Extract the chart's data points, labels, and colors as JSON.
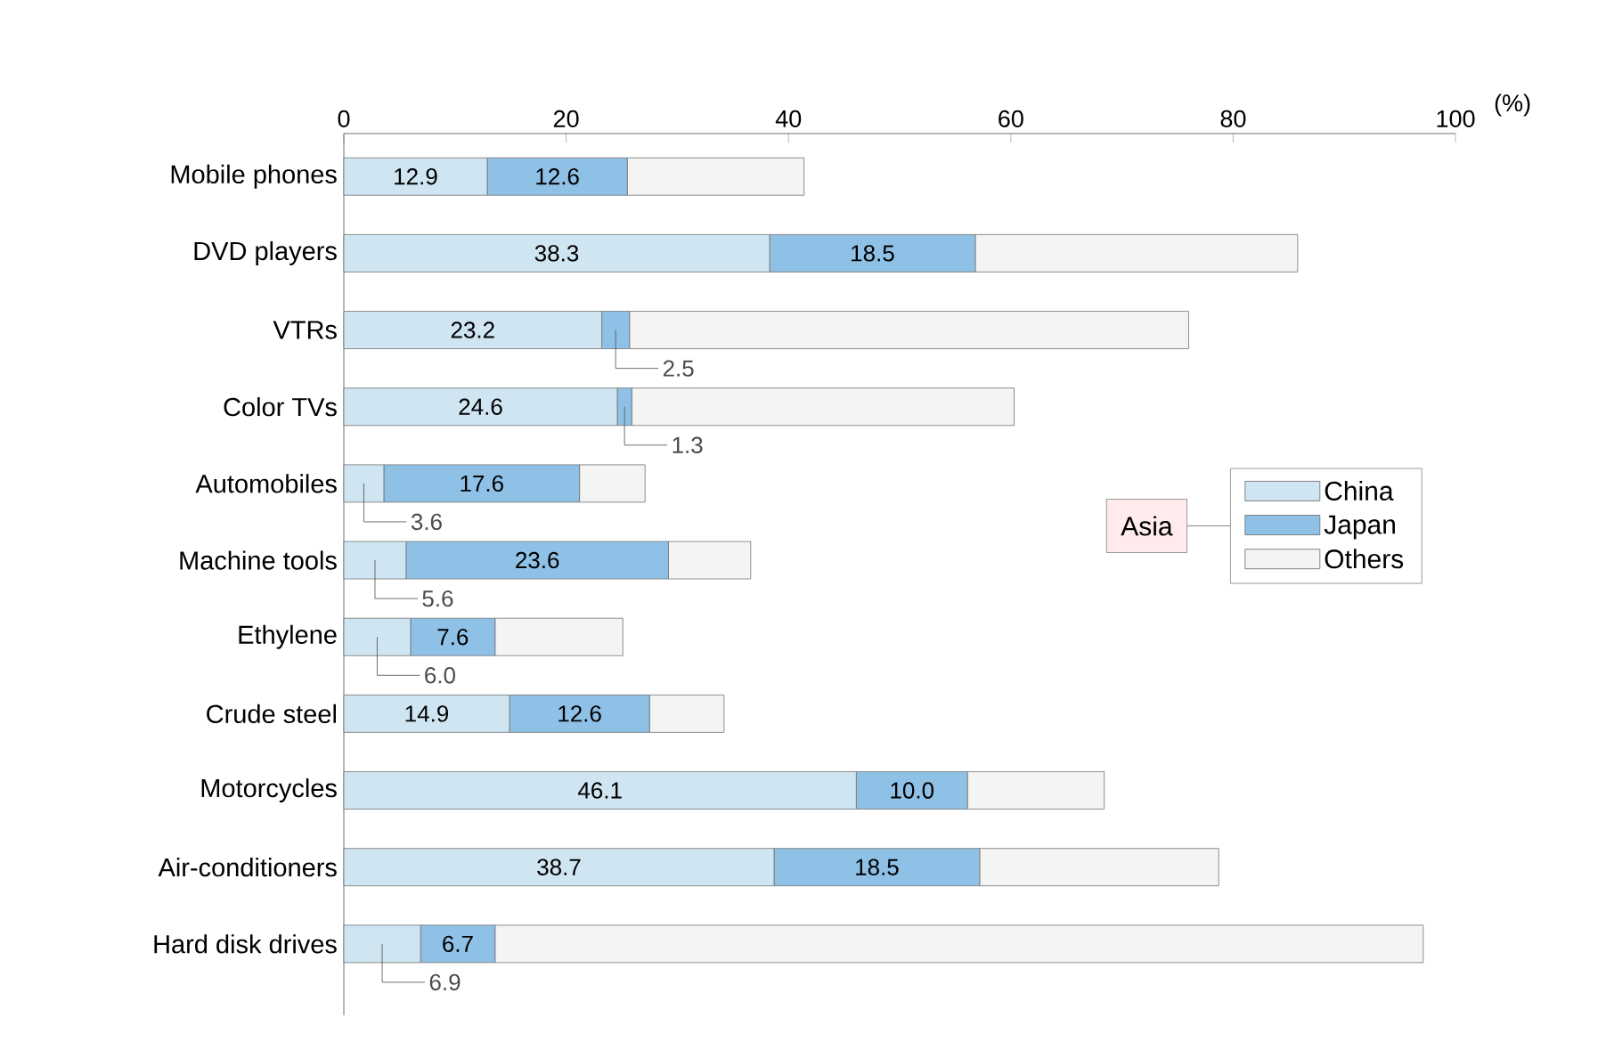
{
  "chart_data": {
    "type": "bar",
    "orientation": "horizontal",
    "stacked": true,
    "categories": [
      "Mobile phones",
      "DVD players",
      "VTRs",
      "Color TVs",
      "Automobiles",
      "Machine tools",
      "Ethylene",
      "Crude steel",
      "Motorcycles",
      "Air-conditioners",
      "Hard disk drives"
    ],
    "xlabel": "(%)",
    "xlim": [
      0,
      100
    ],
    "xticks": [
      0,
      20,
      40,
      60,
      80,
      100
    ],
    "legend": "right",
    "legend_title": "Asia",
    "series": [
      {
        "name": "China",
        "color": "#cfe5f2",
        "values": [
          12.9,
          38.3,
          23.2,
          24.6,
          3.6,
          5.6,
          6.0,
          14.9,
          46.1,
          38.7,
          6.9
        ],
        "value_labels": [
          "12.9",
          "38.3",
          "23.2",
          "24.6",
          "3.6",
          "5.6",
          "6.0",
          "14.9",
          "46.1",
          "38.7",
          "6.9"
        ]
      },
      {
        "name": "Japan",
        "color": "#8fc1e6",
        "values": [
          12.6,
          18.5,
          2.5,
          1.3,
          17.6,
          23.6,
          7.6,
          12.6,
          10.0,
          18.5,
          6.7
        ],
        "value_labels": [
          "12.6",
          "18.5",
          "2.5",
          "1.3",
          "17.6",
          "23.6",
          "7.6",
          "12.6",
          "10.0",
          "18.5",
          "6.7"
        ]
      },
      {
        "name": "Others",
        "color": "#f4f4f2",
        "values": [
          15.9,
          29.0,
          50.3,
          34.4,
          5.9,
          7.4,
          11.5,
          6.7,
          12.3,
          21.5,
          83.5
        ]
      }
    ]
  }
}
